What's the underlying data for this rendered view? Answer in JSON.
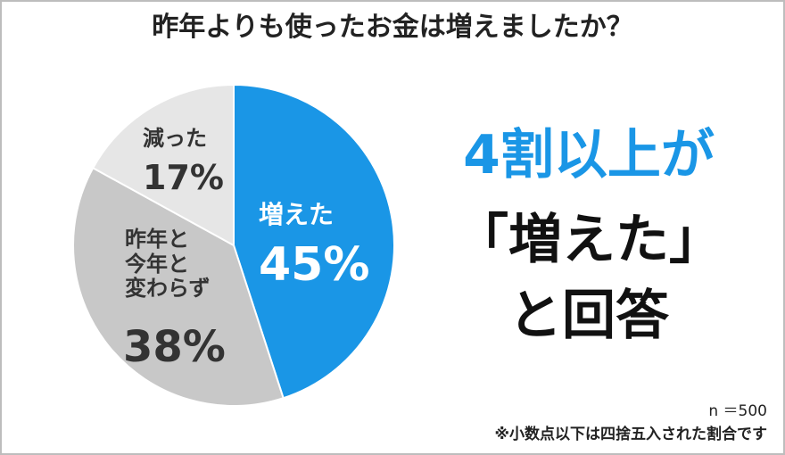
{
  "chart_data": {
    "type": "pie",
    "title": "昨年よりも使ったお金は増えましたか？",
    "categories": [
      "増えた",
      "昨年と\n今年と\n変わらず",
      "減った"
    ],
    "values": [
      45,
      38,
      17
    ],
    "value_labels": [
      "45%",
      "38%",
      "17%"
    ],
    "colors": [
      "#1a96e6",
      "#c8c8c8",
      "#e6e6e6"
    ],
    "headline": [
      "4割以上が",
      "「増えた」",
      "と回答"
    ],
    "sample_size": "n ＝500",
    "footnote": "※小数点以下は四捨五入された割合です"
  }
}
